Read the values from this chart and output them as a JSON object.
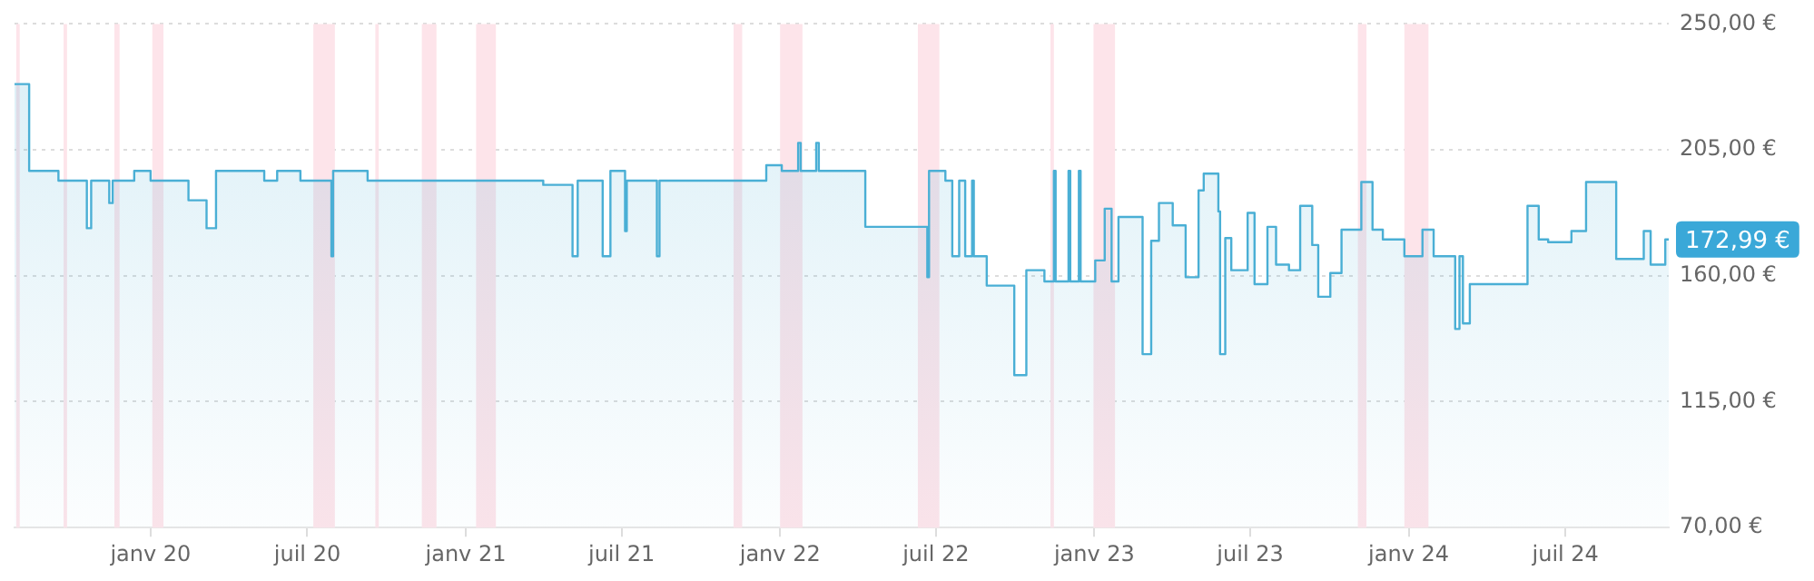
{
  "chart_data": {
    "type": "area",
    "x": [
      "2019-07-27",
      "2019-08-13",
      "2019-08-13",
      "2019-09-16",
      "2019-09-16",
      "2019-10-19",
      "2019-10-19",
      "2019-10-24",
      "2019-10-24",
      "2019-11-14",
      "2019-11-14",
      "2019-11-18",
      "2019-11-18",
      "2019-12-13",
      "2019-12-13",
      "2020-01-01",
      "2020-01-01",
      "2020-02-14",
      "2020-02-14",
      "2020-03-06",
      "2020-03-06",
      "2020-03-17",
      "2020-03-17",
      "2020-05-12",
      "2020-05-12",
      "2020-05-27",
      "2020-05-27",
      "2020-06-23",
      "2020-06-23",
      "2020-07-29",
      "2020-07-29",
      "2020-07-31",
      "2020-07-31",
      "2020-09-09",
      "2020-09-09",
      "2021-04-01",
      "2021-04-01",
      "2021-05-05",
      "2021-05-05",
      "2021-05-11",
      "2021-05-11",
      "2021-06-09",
      "2021-06-09",
      "2021-06-18",
      "2021-06-18",
      "2021-07-05",
      "2021-07-05",
      "2021-07-07",
      "2021-07-07",
      "2021-08-11",
      "2021-08-11",
      "2021-08-14",
      "2021-08-14",
      "2021-12-16",
      "2021-12-16",
      "2022-01-03",
      "2022-01-03",
      "2022-01-22",
      "2022-01-22",
      "2022-01-25",
      "2022-01-25",
      "2022-02-12",
      "2022-02-12",
      "2022-02-15",
      "2022-02-15",
      "2022-04-10",
      "2022-04-10",
      "2022-06-21",
      "2022-06-21",
      "2022-06-23",
      "2022-06-23",
      "2022-07-12",
      "2022-07-12",
      "2022-07-20",
      "2022-07-20",
      "2022-07-28",
      "2022-07-28",
      "2022-08-04",
      "2022-08-04",
      "2022-08-12",
      "2022-08-12",
      "2022-08-14",
      "2022-08-14",
      "2022-08-29",
      "2022-08-29",
      "2022-09-30",
      "2022-09-30",
      "2022-10-14",
      "2022-10-14",
      "2022-11-04",
      "2022-11-04",
      "2022-11-15",
      "2022-11-15",
      "2022-11-17",
      "2022-11-17",
      "2022-12-02",
      "2022-12-02",
      "2022-12-04",
      "2022-12-04",
      "2022-12-14",
      "2022-12-14",
      "2022-12-16",
      "2022-12-16",
      "2023-01-02",
      "2023-01-02",
      "2023-01-13",
      "2023-01-13",
      "2023-01-21",
      "2023-01-21",
      "2023-01-29",
      "2023-01-29",
      "2023-02-26",
      "2023-02-26",
      "2023-03-08",
      "2023-03-08",
      "2023-03-17",
      "2023-03-17",
      "2023-04-02",
      "2023-04-02",
      "2023-04-17",
      "2023-04-17",
      "2023-05-02",
      "2023-05-02",
      "2023-05-08",
      "2023-05-08",
      "2023-05-25",
      "2023-05-25",
      "2023-05-27",
      "2023-05-27",
      "2023-06-02",
      "2023-06-02",
      "2023-06-09",
      "2023-06-09",
      "2023-06-28",
      "2023-06-28",
      "2023-07-06",
      "2023-07-06",
      "2023-07-21",
      "2023-07-21",
      "2023-07-31",
      "2023-07-31",
      "2023-08-15",
      "2023-08-15",
      "2023-08-28",
      "2023-08-28",
      "2023-09-11",
      "2023-09-11",
      "2023-09-18",
      "2023-09-18",
      "2023-10-02",
      "2023-10-02",
      "2023-10-15",
      "2023-10-15",
      "2023-11-07",
      "2023-11-07",
      "2023-11-20",
      "2023-11-20",
      "2023-12-02",
      "2023-12-02",
      "2023-12-27",
      "2023-12-27",
      "2024-01-17",
      "2024-01-17",
      "2024-01-30",
      "2024-01-30",
      "2024-02-24",
      "2024-02-24",
      "2024-02-29",
      "2024-02-29",
      "2024-03-04",
      "2024-03-04",
      "2024-03-12",
      "2024-03-12",
      "2024-05-18",
      "2024-05-18",
      "2024-05-31",
      "2024-05-31",
      "2024-06-11",
      "2024-06-11",
      "2024-07-08",
      "2024-07-08",
      "2024-07-25",
      "2024-07-25",
      "2024-08-29",
      "2024-08-29",
      "2024-09-30",
      "2024-09-30",
      "2024-10-08",
      "2024-10-08",
      "2024-10-25",
      "2024-10-25",
      "2024-10-29"
    ],
    "series": [
      {
        "color": "#4aafd5",
        "values": [
          228.5,
          228.5,
          197.5,
          197.5,
          194,
          194,
          177,
          177,
          194,
          194,
          186,
          186,
          194,
          194,
          197.5,
          197.5,
          194,
          194,
          187,
          187,
          177,
          177,
          197.5,
          197.5,
          194,
          194,
          197.5,
          197.5,
          194,
          194,
          167,
          167,
          197.5,
          197.5,
          194,
          194,
          192.5,
          192.5,
          167,
          167,
          194,
          194,
          167,
          167,
          197.5,
          197.5,
          176,
          176,
          194,
          194,
          167,
          167,
          194,
          194,
          199.5,
          199.5,
          197.5,
          197.5,
          207.5,
          207.5,
          197.5,
          197.5,
          207.5,
          207.5,
          197.5,
          197.5,
          177.5,
          177.5,
          159.5,
          159.5,
          197.5,
          197.5,
          194,
          194,
          167,
          167,
          194,
          194,
          167,
          167,
          194,
          194,
          167,
          167,
          156.5,
          156.5,
          124.5,
          124.5,
          162,
          162,
          158,
          158,
          197.5,
          197.5,
          158,
          158,
          197.5,
          197.5,
          158,
          158,
          197.5,
          197.5,
          158,
          158,
          165.5,
          165.5,
          184,
          184,
          158,
          158,
          181,
          181,
          132,
          132,
          172.5,
          172.5,
          186,
          186,
          178,
          178,
          159.5,
          159.5,
          190.5,
          190.5,
          196.5,
          196.5,
          183,
          183,
          132,
          132,
          173.5,
          173.5,
          162,
          162,
          182.5,
          182.5,
          157,
          157,
          177.5,
          177.5,
          164,
          164,
          162,
          162,
          185,
          185,
          171,
          171,
          152.5,
          152.5,
          161,
          161,
          176.5,
          176.5,
          193.5,
          193.5,
          176.5,
          176.5,
          173,
          173,
          167,
          167,
          176.5,
          176.5,
          167,
          167,
          141,
          141,
          167,
          167,
          143,
          143,
          157,
          157,
          185,
          185,
          173,
          173,
          172,
          172,
          176,
          176,
          193.5,
          193.5,
          166,
          166,
          176,
          176,
          164,
          164,
          173,
          173
        ]
      }
    ],
    "xlim": [
      "2019-07-27",
      "2024-10-29"
    ],
    "xticks": [
      {
        "value": "2020-01-01",
        "label": "janv 20"
      },
      {
        "value": "2020-07-01",
        "label": "juil 20"
      },
      {
        "value": "2021-01-01",
        "label": "janv 21"
      },
      {
        "value": "2021-07-01",
        "label": "juil 21"
      },
      {
        "value": "2022-01-01",
        "label": "janv 22"
      },
      {
        "value": "2022-07-01",
        "label": "juil 22"
      },
      {
        "value": "2023-01-01",
        "label": "janv 23"
      },
      {
        "value": "2023-07-01",
        "label": "juil 23"
      },
      {
        "value": "2024-01-01",
        "label": "janv 24"
      },
      {
        "value": "2024-07-01",
        "label": "juil 24"
      }
    ],
    "ylim": [
      70,
      250
    ],
    "yticks": [
      {
        "value": 70,
        "label": "70,00 €"
      },
      {
        "value": 115,
        "label": "115,00 €"
      },
      {
        "value": 160,
        "label": "160,00 €"
      },
      {
        "value": 205,
        "label": "205,00 €"
      },
      {
        "value": 250,
        "label": "250,00 €"
      }
    ],
    "grid": "y",
    "bands": [
      {
        "axis": "x",
        "from": "2019-07-29",
        "to": "2019-08-02",
        "color": "#fde4ea"
      },
      {
        "axis": "x",
        "from": "2019-09-22",
        "to": "2019-09-26",
        "color": "#fde4ea"
      },
      {
        "axis": "x",
        "from": "2019-11-20",
        "to": "2019-11-26",
        "color": "#fde4ea"
      },
      {
        "axis": "x",
        "from": "2020-01-03",
        "to": "2020-01-16",
        "color": "#fde4ea"
      },
      {
        "axis": "x",
        "from": "2020-07-08",
        "to": "2020-08-02",
        "color": "#fde4ea"
      },
      {
        "axis": "x",
        "from": "2020-09-18",
        "to": "2020-09-22",
        "color": "#fde4ea"
      },
      {
        "axis": "x",
        "from": "2020-11-11",
        "to": "2020-11-28",
        "color": "#fde4ea"
      },
      {
        "axis": "x",
        "from": "2021-01-13",
        "to": "2021-02-05",
        "color": "#fde4ea"
      },
      {
        "axis": "x",
        "from": "2021-11-08",
        "to": "2021-11-18",
        "color": "#fde4ea"
      },
      {
        "axis": "x",
        "from": "2022-01-01",
        "to": "2022-01-27",
        "color": "#fde4ea"
      },
      {
        "axis": "x",
        "from": "2022-06-10",
        "to": "2022-07-05",
        "color": "#fde4ea"
      },
      {
        "axis": "x",
        "from": "2022-11-11",
        "to": "2022-11-15",
        "color": "#fde4ea"
      },
      {
        "axis": "x",
        "from": "2022-12-31",
        "to": "2023-01-25",
        "color": "#fde4ea"
      },
      {
        "axis": "x",
        "from": "2023-11-03",
        "to": "2023-11-13",
        "color": "#fde4ea"
      },
      {
        "axis": "x",
        "from": "2023-12-27",
        "to": "2024-01-24",
        "color": "#fde4ea"
      }
    ],
    "annotations": [
      {
        "text": "172,99 €",
        "x": "2024-10-29",
        "y": 172.99
      }
    ]
  }
}
